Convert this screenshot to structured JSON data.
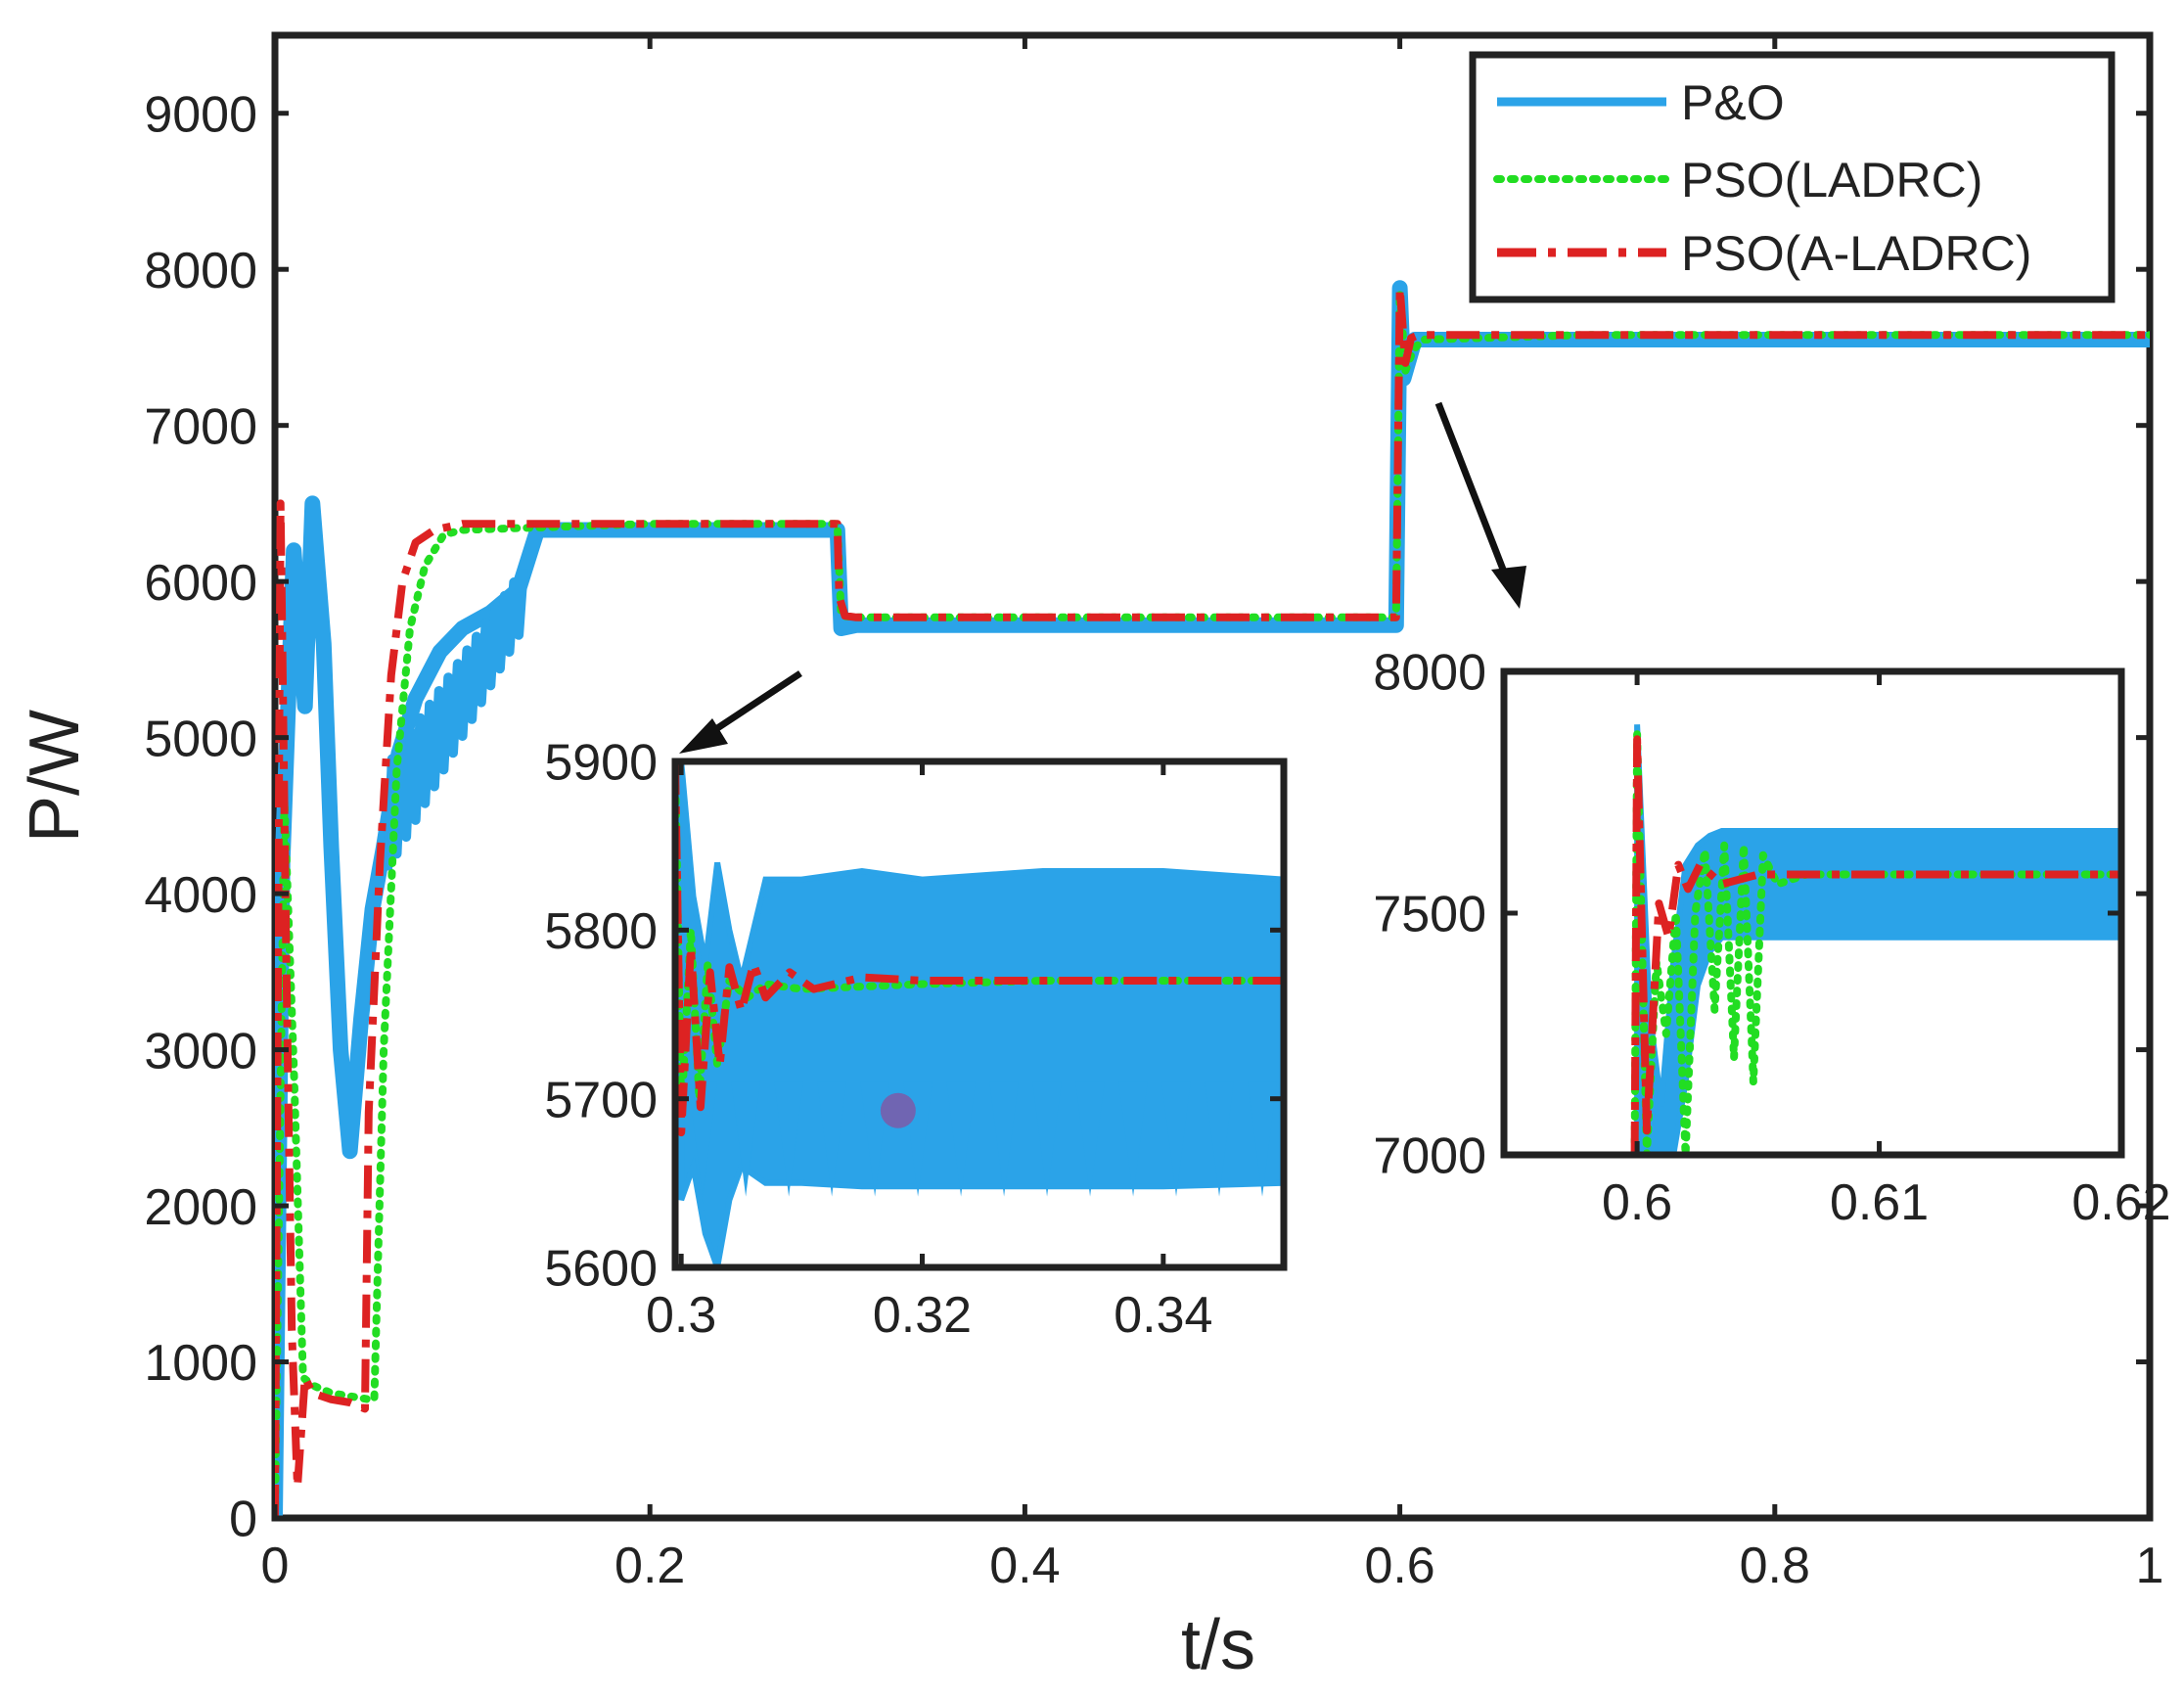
{
  "chart_data": {
    "type": "line",
    "title": "",
    "xlabel": "t/s",
    "ylabel": "P/W",
    "xlim": [
      0,
      1
    ],
    "ylim": [
      0,
      9500
    ],
    "xticks": [
      "0",
      "0.2",
      "0.4",
      "0.6",
      "0.8",
      "1"
    ],
    "yticks": [
      "0",
      "1000",
      "2000",
      "3000",
      "4000",
      "5000",
      "6000",
      "7000",
      "8000",
      "9000"
    ],
    "legend_position": "top-right",
    "series": [
      {
        "name": "P&O",
        "color": "#2ba3e8",
        "style": "solid",
        "points": [
          [
            0,
            0
          ],
          [
            0.004,
            4200
          ],
          [
            0.01,
            6200
          ],
          [
            0.016,
            5200
          ],
          [
            0.02,
            6500
          ],
          [
            0.026,
            5600
          ],
          [
            0.03,
            4300
          ],
          [
            0.035,
            3000
          ],
          [
            0.04,
            2350
          ],
          [
            0.046,
            3200
          ],
          [
            0.052,
            3900
          ],
          [
            0.058,
            4300
          ],
          [
            0.066,
            4900
          ],
          [
            0.075,
            5250
          ],
          [
            0.088,
            5550
          ],
          [
            0.1,
            5700
          ],
          [
            0.115,
            5800
          ],
          [
            0.13,
            5950
          ],
          [
            0.14,
            6330
          ],
          [
            0.2,
            6330
          ],
          [
            0.3,
            6330
          ],
          [
            0.302,
            5700
          ],
          [
            0.31,
            5720
          ],
          [
            0.4,
            5720
          ],
          [
            0.5,
            5720
          ],
          [
            0.598,
            5720
          ],
          [
            0.6,
            7880
          ],
          [
            0.602,
            7300
          ],
          [
            0.608,
            7550
          ],
          [
            0.7,
            7550
          ],
          [
            0.8,
            7550
          ],
          [
            0.9,
            7550
          ],
          [
            1,
            7550
          ]
        ]
      },
      {
        "name": "PSO(LADRC)",
        "color": "#22dd22",
        "style": "dotted",
        "points": [
          [
            0,
            0
          ],
          [
            0.005,
            4600
          ],
          [
            0.01,
            2900
          ],
          [
            0.015,
            900
          ],
          [
            0.02,
            850
          ],
          [
            0.03,
            800
          ],
          [
            0.04,
            780
          ],
          [
            0.05,
            760
          ],
          [
            0.053,
            760
          ],
          [
            0.058,
            3000
          ],
          [
            0.065,
            4800
          ],
          [
            0.072,
            5700
          ],
          [
            0.08,
            6100
          ],
          [
            0.09,
            6300
          ],
          [
            0.1,
            6330
          ],
          [
            0.2,
            6370
          ],
          [
            0.3,
            6370
          ],
          [
            0.302,
            5780
          ],
          [
            0.31,
            5770
          ],
          [
            0.4,
            5770
          ],
          [
            0.5,
            5770
          ],
          [
            0.598,
            5770
          ],
          [
            0.6,
            7850
          ],
          [
            0.603,
            7350
          ],
          [
            0.607,
            7480
          ],
          [
            0.612,
            7550
          ],
          [
            0.7,
            7580
          ],
          [
            0.8,
            7580
          ],
          [
            0.9,
            7580
          ],
          [
            1,
            7580
          ]
        ]
      },
      {
        "name": "PSO(A-LADRC)",
        "color": "#dd2222",
        "style": "dashdot",
        "points": [
          [
            0,
            0
          ],
          [
            0.003,
            6500
          ],
          [
            0.006,
            3600
          ],
          [
            0.009,
            1200
          ],
          [
            0.012,
            200
          ],
          [
            0.016,
            900
          ],
          [
            0.02,
            800
          ],
          [
            0.03,
            760
          ],
          [
            0.04,
            740
          ],
          [
            0.048,
            700
          ],
          [
            0.05,
            2600
          ],
          [
            0.056,
            4200
          ],
          [
            0.062,
            5400
          ],
          [
            0.068,
            6000
          ],
          [
            0.075,
            6250
          ],
          [
            0.085,
            6330
          ],
          [
            0.1,
            6370
          ],
          [
            0.2,
            6370
          ],
          [
            0.3,
            6370
          ],
          [
            0.301,
            5900
          ],
          [
            0.304,
            5780
          ],
          [
            0.31,
            5770
          ],
          [
            0.4,
            5770
          ],
          [
            0.5,
            5770
          ],
          [
            0.598,
            5770
          ],
          [
            0.6,
            7880
          ],
          [
            0.603,
            7400
          ],
          [
            0.606,
            7560
          ],
          [
            0.61,
            7580
          ],
          [
            0.7,
            7580
          ],
          [
            0.8,
            7580
          ],
          [
            0.9,
            7580
          ],
          [
            1,
            7580
          ]
        ]
      }
    ],
    "annotation": "purple marker at t=0.318, P=5693 (inset 1)",
    "insets": [
      {
        "xlim": [
          0.2995,
          0.35
        ],
        "ylim": [
          5600,
          5900
        ],
        "xticks": [
          "0.3",
          "0.32",
          "0.34"
        ],
        "yticks": [
          "5600",
          "5700",
          "5800",
          "5900"
        ],
        "po_envelope": {
          "x": [
            0.3,
            0.301,
            0.302,
            0.303,
            0.304,
            0.305,
            0.307,
            0.31,
            0.315,
            0.32,
            0.33,
            0.34,
            0.35
          ],
          "upper": [
            5900,
            5820,
            5780,
            5840,
            5800,
            5770,
            5830,
            5830,
            5835,
            5830,
            5835,
            5835,
            5830
          ],
          "lower": [
            5640,
            5660,
            5620,
            5600,
            5640,
            5660,
            5650,
            5650,
            5648,
            5648,
            5648,
            5648,
            5650
          ]
        },
        "ladrc": [
          [
            0.2995,
            5900
          ],
          [
            0.3,
            5690
          ],
          [
            0.3008,
            5800
          ],
          [
            0.3015,
            5700
          ],
          [
            0.3022,
            5780
          ],
          [
            0.303,
            5720
          ],
          [
            0.304,
            5770
          ],
          [
            0.3055,
            5760
          ],
          [
            0.307,
            5768
          ],
          [
            0.31,
            5765
          ],
          [
            0.32,
            5768
          ],
          [
            0.33,
            5770
          ],
          [
            0.34,
            5770
          ],
          [
            0.35,
            5770
          ]
        ],
        "aladrc": [
          [
            0.2995,
            5900
          ],
          [
            0.3,
            5680
          ],
          [
            0.3008,
            5790
          ],
          [
            0.3016,
            5695
          ],
          [
            0.3024,
            5775
          ],
          [
            0.3032,
            5720
          ],
          [
            0.304,
            5778
          ],
          [
            0.305,
            5752
          ],
          [
            0.306,
            5780
          ],
          [
            0.307,
            5760
          ],
          [
            0.309,
            5775
          ],
          [
            0.311,
            5765
          ],
          [
            0.315,
            5772
          ],
          [
            0.32,
            5770
          ],
          [
            0.33,
            5770
          ],
          [
            0.35,
            5770
          ]
        ],
        "marker": [
          0.318,
          5693
        ]
      },
      {
        "xlim": [
          0.5945,
          0.62
        ],
        "ylim": [
          7000,
          8000
        ],
        "xticks": [
          "0.6",
          "0.61",
          "0.62"
        ],
        "yticks": [
          "7000",
          "7500",
          "8000"
        ],
        "po_envelope": {
          "x": [
            0.6,
            0.6005,
            0.601,
            0.6015,
            0.602,
            0.6025,
            0.603,
            0.6035,
            0.604,
            0.605,
            0.607,
            0.61,
            0.615,
            0.62
          ],
          "upper": [
            7890,
            7300,
            7100,
            7400,
            7600,
            7640,
            7660,
            7670,
            7670,
            7670,
            7670,
            7670,
            7670,
            7670
          ],
          "lower": [
            7000,
            7000,
            7000,
            7000,
            7150,
            7350,
            7420,
            7450,
            7450,
            7450,
            7450,
            7450,
            7450,
            7450
          ]
        },
        "ladrc": [
          [
            0.5999,
            7000
          ],
          [
            0.6,
            7870
          ],
          [
            0.6004,
            7000
          ],
          [
            0.6008,
            7400
          ],
          [
            0.6012,
            7250
          ],
          [
            0.6016,
            7500
          ],
          [
            0.602,
            7000
          ],
          [
            0.6024,
            7500
          ],
          [
            0.6028,
            7630
          ],
          [
            0.6032,
            7300
          ],
          [
            0.6036,
            7640
          ],
          [
            0.604,
            7200
          ],
          [
            0.6044,
            7640
          ],
          [
            0.6048,
            7150
          ],
          [
            0.6052,
            7620
          ],
          [
            0.6058,
            7560
          ],
          [
            0.607,
            7580
          ],
          [
            0.615,
            7580
          ],
          [
            0.62,
            7580
          ]
        ],
        "aladrc": [
          [
            0.5999,
            7000
          ],
          [
            0.6,
            7860
          ],
          [
            0.6004,
            7050
          ],
          [
            0.6009,
            7520
          ],
          [
            0.6013,
            7450
          ],
          [
            0.6017,
            7600
          ],
          [
            0.6021,
            7550
          ],
          [
            0.6026,
            7600
          ],
          [
            0.6035,
            7560
          ],
          [
            0.605,
            7580
          ],
          [
            0.62,
            7580
          ]
        ]
      }
    ]
  }
}
